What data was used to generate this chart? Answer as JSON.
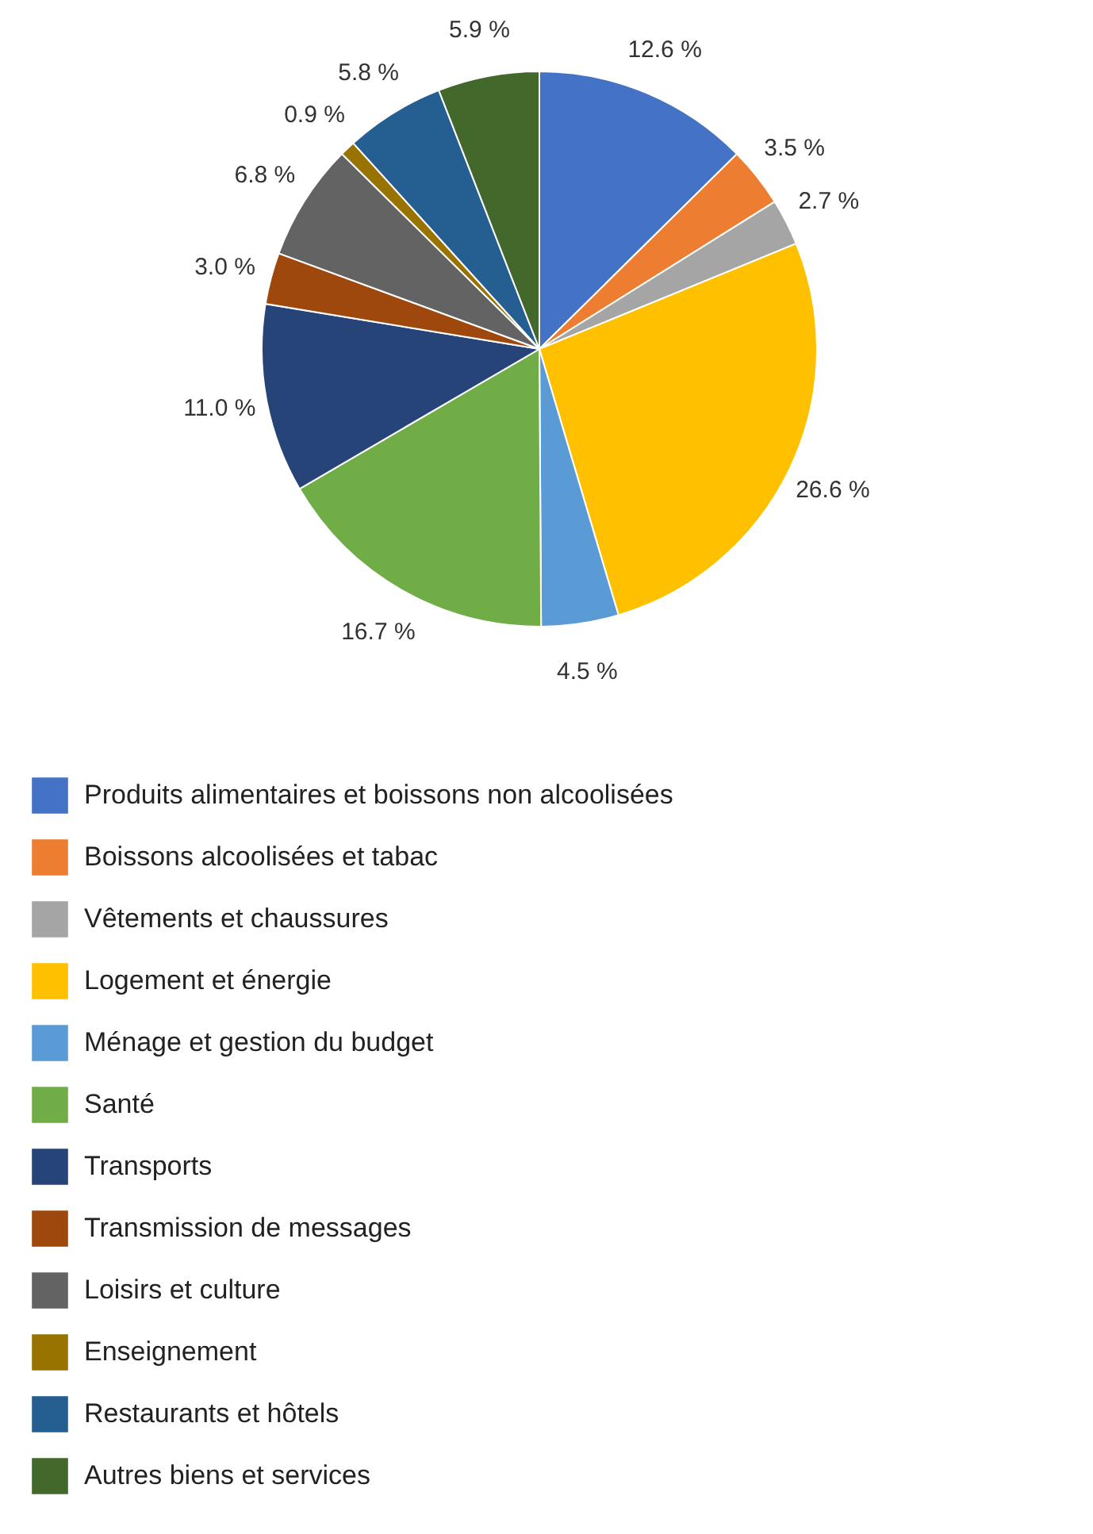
{
  "chart_data": {
    "type": "pie",
    "legend": "bottom",
    "categories": [
      "Produits alimentaires et boissons non alcoolisées",
      "Boissons alcoolisées et tabac",
      "Vêtements et chaussures",
      "Logement et énergie",
      "Ménage et gestion du budget",
      "Santé",
      "Transports",
      "Transmission de messages",
      "Loisirs et culture",
      "Enseignement",
      "Restaurants et hôtels",
      "Autres biens et services"
    ],
    "values": [
      12.6,
      3.5,
      2.7,
      26.6,
      4.5,
      16.7,
      11.0,
      3.0,
      6.8,
      0.9,
      5.8,
      5.9
    ],
    "value_labels": [
      "12.6 %",
      "3.5 %",
      "2.7 %",
      "26.6 %",
      "4.5 %",
      "16.7 %",
      "11.0 %",
      "3.0 %",
      "6.8 %",
      "0.9 %",
      "5.8 %",
      "5.9 %"
    ],
    "colors": [
      "#4472c4",
      "#ed7d31",
      "#a5a5a5",
      "#ffc000",
      "#5b9bd5",
      "#70ad47",
      "#264478",
      "#9e480e",
      "#636363",
      "#997300",
      "#255e91",
      "#43682b"
    ]
  }
}
